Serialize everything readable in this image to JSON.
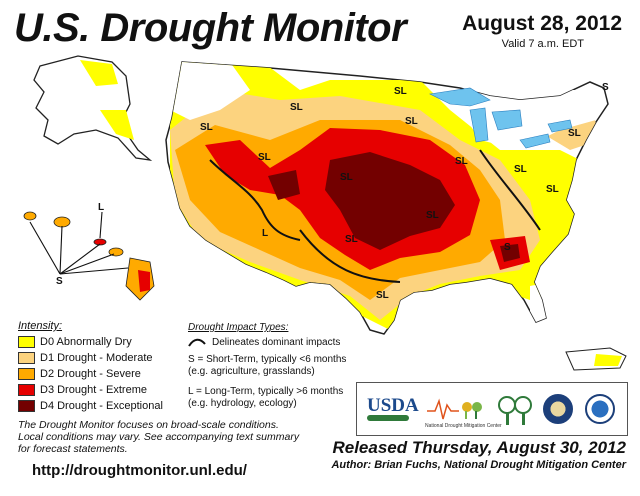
{
  "title": "U.S. Drought Monitor",
  "date": "August 28, 2012",
  "valid": "Valid 7 a.m. EDT",
  "map_labels": {
    "sl": "SL",
    "s": "S",
    "l": "L"
  },
  "legend": {
    "title": "Intensity:",
    "items": [
      {
        "label": "D0 Abnormally Dry",
        "color": "#ffff00"
      },
      {
        "label": "D1 Drought - Moderate",
        "color": "#fcd37f"
      },
      {
        "label": "D2 Drought - Severe",
        "color": "#ffaa00"
      },
      {
        "label": "D3 Drought - Extreme",
        "color": "#e60000"
      },
      {
        "label": "D4 Drought - Exceptional",
        "color": "#730000"
      }
    ]
  },
  "impacts": {
    "title": "Drought Impact Types:",
    "delineates": "Delineates dominant impacts",
    "short_term": "S = Short-Term, typically <6 months",
    "short_term_eg": "(e.g. agriculture, grasslands)",
    "long_term": "L = Long-Term, typically >6 months",
    "long_term_eg": "(e.g. hydrology, ecology)"
  },
  "note": {
    "line1": "The Drought Monitor focuses on broad-scale conditions.",
    "line2": "Local conditions may vary. See accompanying text summary",
    "line3": "for forecast statements."
  },
  "url": "http://droughtmonitor.unl.edu/",
  "released": "Released Thursday, August 30, 2012",
  "author": "Author: Brian Fuchs, National Drought Mitigation Center",
  "logos": {
    "usda": "USDA",
    "ndmc": "National Drought Mitigation Center"
  },
  "colors": {
    "water": "#6ec3ee",
    "outline": "#222222"
  }
}
